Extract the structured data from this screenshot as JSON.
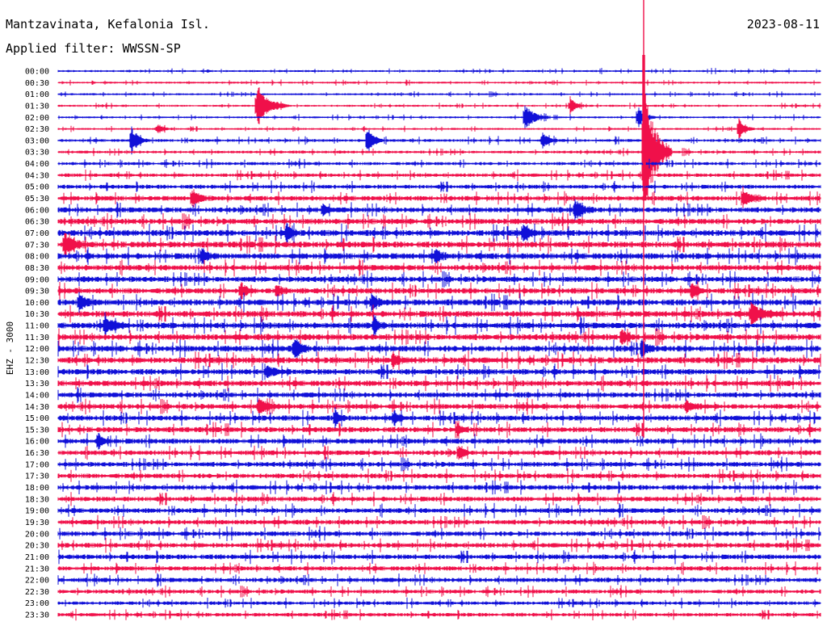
{
  "header": {
    "station": "Mantzavinata, Kefalonia Isl.",
    "date": "2023-08-11",
    "filter": "Applied filter: WWSSN-SP"
  },
  "channel_label": "EHZ - 3000",
  "colors": {
    "blue": "#1010d8",
    "red": "#f0104a"
  },
  "chart_data": {
    "type": "line",
    "title": "Mantzavinata, Kefalonia Isl.",
    "ylabel": "EHZ - 3000",
    "legend": "none",
    "grid": false,
    "row_labels": [
      "00:00",
      "00:30",
      "01:00",
      "01:30",
      "02:00",
      "02:30",
      "03:00",
      "03:30",
      "04:00",
      "04:30",
      "05:00",
      "05:30",
      "06:00",
      "06:30",
      "07:00",
      "07:30",
      "08:00",
      "08:30",
      "09:00",
      "09:30",
      "10:00",
      "10:30",
      "11:00",
      "11:30",
      "12:00",
      "12:30",
      "13:00",
      "13:30",
      "14:00",
      "14:30",
      "15:00",
      "15:30",
      "16:00",
      "16:30",
      "17:00",
      "17:30",
      "18:00",
      "18:30",
      "19:00",
      "19:30",
      "20:00",
      "20:30",
      "21:00",
      "21:30",
      "22:00",
      "22:30",
      "23:00",
      "23:30"
    ],
    "row_colors": [
      "blue",
      "red"
    ],
    "noise_level": [
      1,
      1,
      1,
      1,
      1,
      1,
      1.4,
      1.4,
      1.6,
      1.8,
      2,
      2.4,
      2.6,
      2.8,
      3,
      3,
      3,
      2.8,
      2.8,
      2.8,
      3,
      3,
      3,
      3,
      3,
      3,
      2.8,
      2.8,
      2.6,
      2.6,
      2.6,
      2.6,
      2.6,
      2.4,
      2.4,
      2.4,
      2.4,
      2.4,
      2.4,
      2.4,
      2.4,
      2.4,
      2.4,
      2.2,
      2.2,
      2,
      1.8,
      1.8
    ],
    "events": [
      {
        "row": 3,
        "x": 318,
        "amp": 26,
        "dur": 40
      },
      {
        "row": 3,
        "x": 706,
        "amp": 10,
        "dur": 18
      },
      {
        "row": 4,
        "x": 650,
        "amp": 16,
        "dur": 30
      },
      {
        "row": 4,
        "x": 790,
        "amp": 14,
        "dur": 22
      },
      {
        "row": 5,
        "x": 915,
        "amp": 14,
        "dur": 20
      },
      {
        "row": 5,
        "x": 195,
        "amp": 6,
        "dur": 20
      },
      {
        "row": 6,
        "x": 163,
        "amp": 18,
        "dur": 20
      },
      {
        "row": 6,
        "x": 455,
        "amp": 18,
        "dur": 20
      },
      {
        "row": 6,
        "x": 672,
        "amp": 10,
        "dur": 18
      },
      {
        "row": 7,
        "x": 797,
        "amp": 95,
        "dur": 35
      },
      {
        "row": 11,
        "x": 238,
        "amp": 10,
        "dur": 25
      },
      {
        "row": 11,
        "x": 920,
        "amp": 12,
        "dur": 30
      },
      {
        "row": 12,
        "x": 712,
        "amp": 14,
        "dur": 24
      },
      {
        "row": 12,
        "x": 400,
        "amp": 8,
        "dur": 16
      },
      {
        "row": 14,
        "x": 355,
        "amp": 12,
        "dur": 16
      },
      {
        "row": 14,
        "x": 648,
        "amp": 14,
        "dur": 20
      },
      {
        "row": 15,
        "x": 80,
        "amp": 14,
        "dur": 30
      },
      {
        "row": 16,
        "x": 250,
        "amp": 10,
        "dur": 18
      },
      {
        "row": 16,
        "x": 540,
        "amp": 10,
        "dur": 18
      },
      {
        "row": 19,
        "x": 298,
        "amp": 10,
        "dur": 20
      },
      {
        "row": 19,
        "x": 343,
        "amp": 8,
        "dur": 18
      },
      {
        "row": 19,
        "x": 857,
        "amp": 12,
        "dur": 18
      },
      {
        "row": 20,
        "x": 98,
        "amp": 12,
        "dur": 20
      },
      {
        "row": 20,
        "x": 460,
        "amp": 10,
        "dur": 18
      },
      {
        "row": 21,
        "x": 930,
        "amp": 12,
        "dur": 40
      },
      {
        "row": 22,
        "x": 130,
        "amp": 10,
        "dur": 30
      },
      {
        "row": 22,
        "x": 463,
        "amp": 10,
        "dur": 16
      },
      {
        "row": 23,
        "x": 770,
        "amp": 10,
        "dur": 18
      },
      {
        "row": 24,
        "x": 365,
        "amp": 14,
        "dur": 20
      },
      {
        "row": 24,
        "x": 795,
        "amp": 12,
        "dur": 16
      },
      {
        "row": 25,
        "x": 487,
        "amp": 9,
        "dur": 16
      },
      {
        "row": 26,
        "x": 330,
        "amp": 8,
        "dur": 24
      },
      {
        "row": 29,
        "x": 320,
        "amp": 9,
        "dur": 30
      },
      {
        "row": 29,
        "x": 850,
        "amp": 8,
        "dur": 24
      },
      {
        "row": 30,
        "x": 415,
        "amp": 10,
        "dur": 16
      },
      {
        "row": 30,
        "x": 488,
        "amp": 10,
        "dur": 16
      },
      {
        "row": 31,
        "x": 566,
        "amp": 9,
        "dur": 16
      },
      {
        "row": 32,
        "x": 122,
        "amp": 10,
        "dur": 18
      },
      {
        "row": 33,
        "x": 568,
        "amp": 9,
        "dur": 16
      }
    ],
    "main_event": {
      "x": 797,
      "start_row": 0,
      "end_row": 31
    }
  }
}
